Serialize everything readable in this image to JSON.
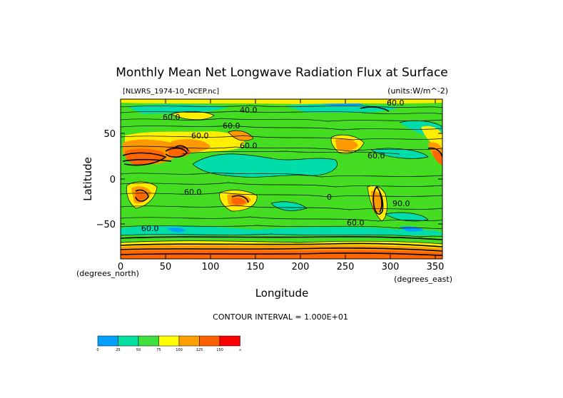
{
  "title": "Monthly Mean Net Longwave Radiation Flux at Surface",
  "file_label": "[NLWRS_1974-10_NCEP.nc]",
  "units_label": "(units:W/m^-2)",
  "x_axis": {
    "label": "Longitude",
    "unit_label": "(degrees_east)",
    "ticks": [
      "0",
      "50",
      "100",
      "150",
      "200",
      "250",
      "300",
      "350"
    ]
  },
  "y_axis": {
    "label": "Latitude",
    "unit_label": "(degrees_north)",
    "ticks": [
      "50",
      "0",
      "−50"
    ]
  },
  "contour_interval_text": "CONTOUR INTERVAL = 1.000E+01",
  "contour_labels": [
    "60.0",
    "40.0",
    "60.0",
    "60.0",
    "60.0",
    "60.0",
    "60.0",
    "60.0",
    "60.0",
    "0",
    "60.0",
    "90.0"
  ],
  "colorbar": {
    "colors": [
      "#00a0ff",
      "#00e0a0",
      "#40e040",
      "#ffff00",
      "#ffa000",
      "#ff6000",
      "#ff0000"
    ],
    "tick_labels": [
      "0",
      "25",
      "50",
      "75",
      "100",
      "125",
      "150",
      "∞"
    ]
  },
  "map_colors": {
    "land_green": "#44dd22",
    "cyan": "#00ddaa",
    "yellow": "#ffee00",
    "orange": "#ff9900",
    "dark_orange": "#ff6600",
    "blue": "#00a0ff"
  }
}
